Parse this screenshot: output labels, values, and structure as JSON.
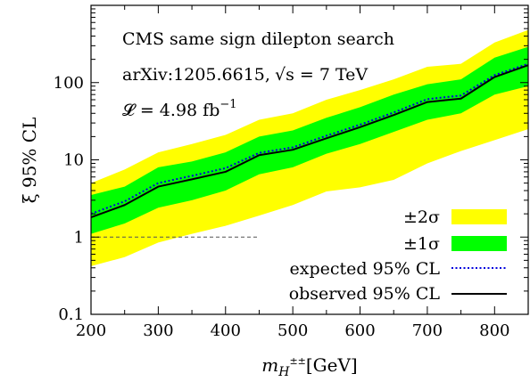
{
  "chart_data": {
    "type": "line",
    "xlabel": "m_{H^{±±}} [GeV]",
    "xlabel_main": "m",
    "xlabel_sub": "H",
    "xlabel_sup": "±±",
    "xlabel_unit": "[GeV]",
    "ylabel": "ξ  95% CL",
    "xlim": [
      200,
      850
    ],
    "ylim": [
      0.1,
      1000
    ],
    "yscale": "log",
    "xticks": [
      200,
      300,
      400,
      500,
      600,
      700,
      800
    ],
    "xtick_labels": [
      "200",
      "300",
      "400",
      "500",
      "600",
      "700",
      "800"
    ],
    "yticks": [
      0.1,
      1,
      10,
      100
    ],
    "ytick_labels": [
      "0.1",
      "1",
      "10",
      "100"
    ],
    "grid": false,
    "legend_position": "bottom-right",
    "annotations": [
      "CMS same sign dilepton search",
      "arXiv:1205.6615,",
      "√s = 7 TeV",
      "𝓛 = 4.98 fb",
      "−1"
    ],
    "x": [
      200,
      250,
      300,
      350,
      400,
      450,
      500,
      550,
      600,
      650,
      700,
      750,
      800,
      850
    ],
    "series": [
      {
        "name": "±2σ",
        "kind": "band",
        "color": "#ffff00",
        "lower": [
          0.42,
          0.55,
          0.85,
          1.1,
          1.4,
          1.9,
          2.6,
          3.9,
          4.4,
          5.5,
          9.0,
          13.0,
          18.0,
          25.0
        ],
        "upper": [
          5.0,
          7.5,
          12.5,
          16.0,
          21.0,
          33.0,
          40.0,
          60.0,
          80.0,
          110.0,
          160.0,
          175.0,
          330.0,
          480.0
        ]
      },
      {
        "name": "±1σ",
        "kind": "band",
        "color": "#00ff00",
        "lower": [
          1.1,
          1.5,
          2.4,
          3.0,
          4.0,
          6.5,
          8.0,
          12.0,
          16.0,
          23.0,
          33.0,
          40.0,
          70.0,
          90.0
        ],
        "upper": [
          3.5,
          4.5,
          8.0,
          9.5,
          12.5,
          20.0,
          24.0,
          35.0,
          48.0,
          70.0,
          95.0,
          110.0,
          210.0,
          290.0
        ]
      },
      {
        "name": "expected 95% CL",
        "kind": "line",
        "style": "dotted",
        "color": "#0000dd",
        "values": [
          2.0,
          2.9,
          5.0,
          6.2,
          7.8,
          12.3,
          14.5,
          20.5,
          28.5,
          41.0,
          61.0,
          68.0,
          125.0,
          175.0
        ]
      },
      {
        "name": "observed 95% CL",
        "kind": "line",
        "style": "solid",
        "color": "#000000",
        "values": [
          1.8,
          2.6,
          4.5,
          5.6,
          7.0,
          11.5,
          13.5,
          19.0,
          26.5,
          38.0,
          56.0,
          62.0,
          118.0,
          168.0
        ]
      },
      {
        "kind": "reference",
        "style": "dashed",
        "color": "#555555",
        "x": [
          200,
          450
        ],
        "values": [
          1,
          1
        ]
      }
    ]
  }
}
